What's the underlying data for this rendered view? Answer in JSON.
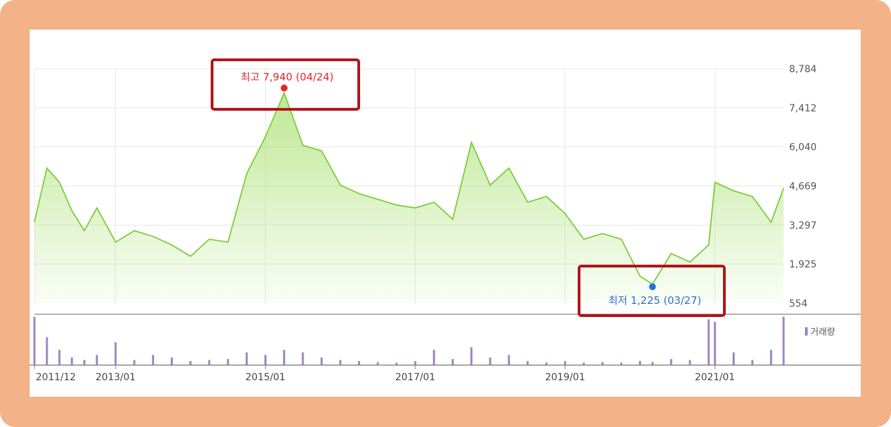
{
  "chart_data": {
    "type": "area",
    "ylim": [
      554,
      8784
    ],
    "yticks": [
      "8,784",
      "7,412",
      "6,040",
      "4,669",
      "3,297",
      "1,925",
      "554"
    ],
    "xticks": [
      "2011/12",
      "2013/01",
      "2015/01",
      "2017/01",
      "2019/01",
      "2021/01"
    ],
    "x": [
      "2011/12",
      "2012/02",
      "2012/04",
      "2012/06",
      "2012/08",
      "2012/10",
      "2013/01",
      "2013/04",
      "2013/07",
      "2013/10",
      "2014/01",
      "2014/04",
      "2014/07",
      "2014/10",
      "2015/01",
      "2015/04",
      "2015/07",
      "2015/10",
      "2016/01",
      "2016/04",
      "2016/07",
      "2016/10",
      "2017/01",
      "2017/04",
      "2017/07",
      "2017/10",
      "2018/01",
      "2018/04",
      "2018/07",
      "2018/10",
      "2019/01",
      "2019/04",
      "2019/07",
      "2019/10",
      "2020/01",
      "2020/03",
      "2020/06",
      "2020/09",
      "2020/12",
      "2021/01",
      "2021/04",
      "2021/07",
      "2021/10",
      "2021/12"
    ],
    "series": [
      {
        "values": [
          3400,
          5300,
          4800,
          3800,
          3100,
          3900,
          2700,
          3100,
          2900,
          2600,
          2200,
          2800,
          2700,
          5100,
          6400,
          7940,
          6100,
          5900,
          4700,
          4400,
          4200,
          4000,
          3900,
          4100,
          3500,
          6200,
          4700,
          5300,
          4100,
          4300,
          3700,
          2800,
          3000,
          2800,
          1500,
          1225,
          2300,
          2000,
          2600,
          4800,
          4500,
          4300,
          3400,
          4600
        ]
      }
    ],
    "annotations": {
      "high": {
        "label": "최고 7,940 (04/24)",
        "date": "2015/04",
        "value": 7940
      },
      "low": {
        "label": "최저 1,225 (03/27)",
        "date": "2020/03",
        "value": 1225
      }
    },
    "volume": {
      "legend": "거래량",
      "values": [
        0.95,
        0.55,
        0.3,
        0.15,
        0.1,
        0.2,
        0.45,
        0.1,
        0.2,
        0.15,
        0.08,
        0.1,
        0.12,
        0.25,
        0.2,
        0.3,
        0.25,
        0.15,
        0.1,
        0.08,
        0.06,
        0.05,
        0.08,
        0.3,
        0.12,
        0.35,
        0.15,
        0.2,
        0.08,
        0.05,
        0.08,
        0.05,
        0.06,
        0.05,
        0.08,
        0.06,
        0.12,
        0.1,
        0.9,
        0.85,
        0.25,
        0.1,
        0.3,
        0.95
      ]
    },
    "colors": {
      "line": "#7ccc39",
      "fill_top": "#a8e070",
      "volume": "#9b86c3",
      "high": "#e8242b",
      "low": "#2a6fd6",
      "highlight_box": "#b0151b"
    }
  }
}
